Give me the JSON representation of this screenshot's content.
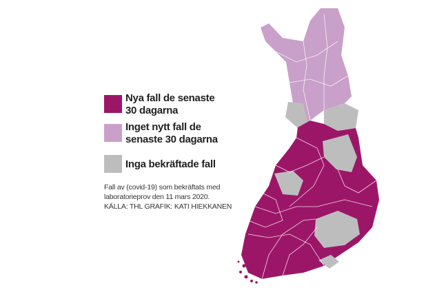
{
  "legend": {
    "items": [
      {
        "lines": [
          "Nya fall de senaste",
          "30 dagarna"
        ],
        "color": "#9c1668"
      },
      {
        "lines": [
          "Inget nytt fall de",
          "senaste 30 dagarna"
        ],
        "color": "#c9a0c9"
      },
      {
        "lines": [
          "Inga bekräftade fall"
        ],
        "color": "#bdbdbd"
      }
    ]
  },
  "notes": {
    "lines": [
      "Fall av (covid-19) som bekräftats med",
      "laboratorieprov den 11 mars 2020.",
      "KÄLLA: THL GRAFIK: KATI HIEKKANEN"
    ]
  }
}
